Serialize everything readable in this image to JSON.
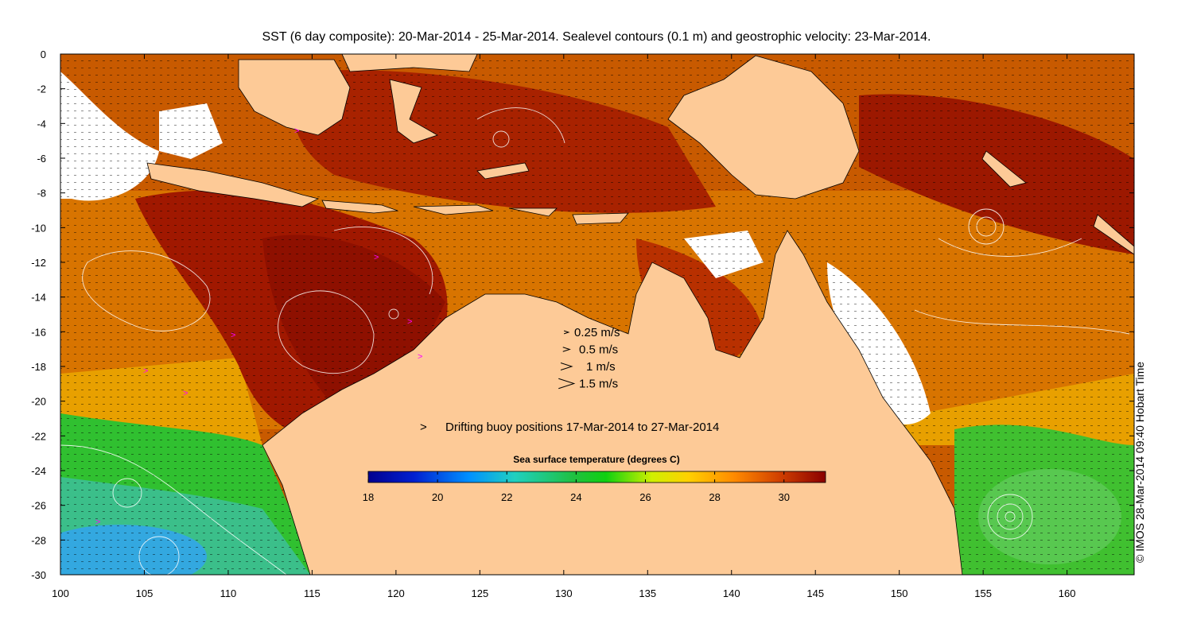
{
  "title": "SST (6 day composite): 20-Mar-2014 - 25-Mar-2014. Sealevel contours (0.1 m) and geostrophic velocity: 23-Mar-2014.",
  "credit": "© IMOS 28-Mar-2014 09:40 Hobart Time",
  "axes": {
    "x_ticks": [
      "100",
      "105",
      "110",
      "115",
      "120",
      "125",
      "130",
      "135",
      "140",
      "145",
      "150",
      "155",
      "160"
    ],
    "y_ticks": [
      "0",
      "-2",
      "-4",
      "-6",
      "-8",
      "-10",
      "-12",
      "-14",
      "-16",
      "-18",
      "-20",
      "-22",
      "-24",
      "-26",
      "-28",
      "-30"
    ],
    "xlim": [
      100,
      164
    ],
    "ylim": [
      -30,
      0
    ]
  },
  "velocity_legend": [
    {
      "label": "0.25 m/s",
      "speed": 0.25
    },
    {
      "label": "0.5 m/s",
      "speed": 0.5
    },
    {
      "label": "1 m/s",
      "speed": 1
    },
    {
      "label": "1.5 m/s",
      "speed": 1.5
    }
  ],
  "buoy_legend": {
    "symbol": ">",
    "label": "Drifting buoy positions 17-Mar-2014 to 27-Mar-2014",
    "color": "#ff00ff"
  },
  "colorbar": {
    "title": "Sea surface temperature (degrees C)",
    "ticks": [
      "18",
      "20",
      "22",
      "24",
      "26",
      "28",
      "30"
    ],
    "range": [
      18,
      31.2
    ]
  },
  "colors": {
    "land": "#fdca97",
    "warm": "#9a1a00",
    "cool": "#22cc33",
    "cold": "#1fb3e6"
  }
}
